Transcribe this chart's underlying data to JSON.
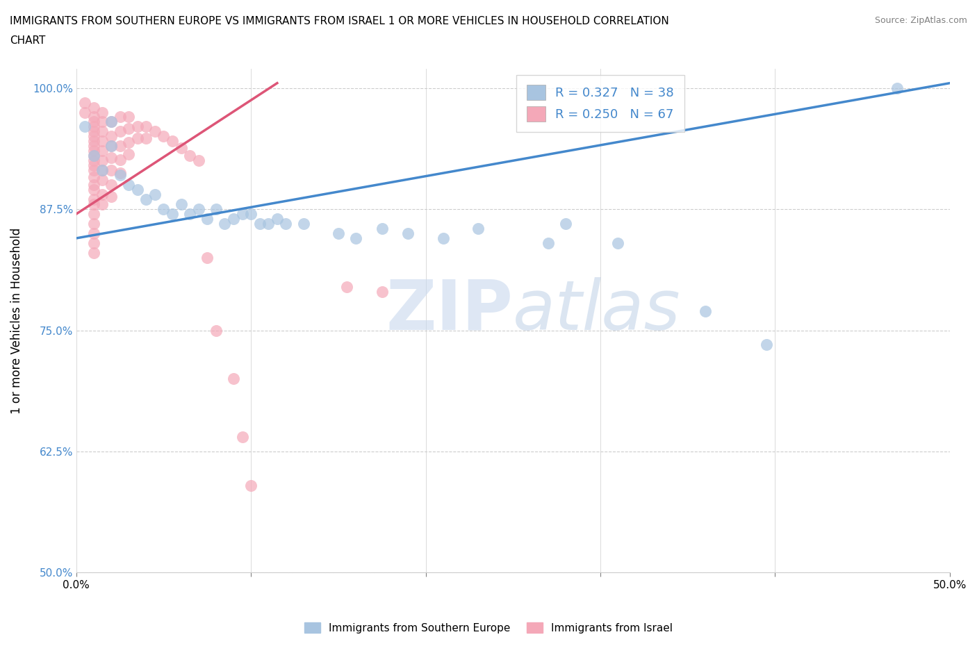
{
  "title_line1": "IMMIGRANTS FROM SOUTHERN EUROPE VS IMMIGRANTS FROM ISRAEL 1 OR MORE VEHICLES IN HOUSEHOLD CORRELATION",
  "title_line2": "CHART",
  "source": "Source: ZipAtlas.com",
  "ylabel": "1 or more Vehicles in Household",
  "xlim": [
    0.0,
    0.5
  ],
  "ylim": [
    0.5,
    1.02
  ],
  "xticks": [
    0.0,
    0.1,
    0.2,
    0.3,
    0.4,
    0.5
  ],
  "yticks": [
    0.5,
    0.625,
    0.75,
    0.875,
    1.0
  ],
  "ytick_labels": [
    "50.0%",
    "62.5%",
    "75.0%",
    "87.5%",
    "100.0%"
  ],
  "xtick_labels": [
    "0.0%",
    "",
    "",
    "",
    "",
    "50.0%"
  ],
  "blue_R": 0.327,
  "blue_N": 38,
  "pink_R": 0.25,
  "pink_N": 67,
  "blue_color": "#a8c4e0",
  "pink_color": "#f4a8b8",
  "blue_line_color": "#4488cc",
  "pink_line_color": "#dd5577",
  "watermark_color": "#d0dff0",
  "legend_text_color": "#4488cc",
  "blue_line_x": [
    0.0,
    0.5
  ],
  "blue_line_y": [
    0.845,
    1.005
  ],
  "pink_line_x": [
    0.0,
    0.115
  ],
  "pink_line_y": [
    0.87,
    1.005
  ],
  "blue_scatter": [
    [
      0.005,
      0.96
    ],
    [
      0.01,
      0.93
    ],
    [
      0.015,
      0.915
    ],
    [
      0.02,
      0.965
    ],
    [
      0.02,
      0.94
    ],
    [
      0.025,
      0.91
    ],
    [
      0.03,
      0.9
    ],
    [
      0.035,
      0.895
    ],
    [
      0.04,
      0.885
    ],
    [
      0.045,
      0.89
    ],
    [
      0.05,
      0.875
    ],
    [
      0.055,
      0.87
    ],
    [
      0.06,
      0.88
    ],
    [
      0.065,
      0.87
    ],
    [
      0.07,
      0.875
    ],
    [
      0.075,
      0.865
    ],
    [
      0.08,
      0.875
    ],
    [
      0.085,
      0.86
    ],
    [
      0.09,
      0.865
    ],
    [
      0.095,
      0.87
    ],
    [
      0.1,
      0.87
    ],
    [
      0.105,
      0.86
    ],
    [
      0.11,
      0.86
    ],
    [
      0.115,
      0.865
    ],
    [
      0.12,
      0.86
    ],
    [
      0.13,
      0.86
    ],
    [
      0.15,
      0.85
    ],
    [
      0.16,
      0.845
    ],
    [
      0.175,
      0.855
    ],
    [
      0.19,
      0.85
    ],
    [
      0.21,
      0.845
    ],
    [
      0.23,
      0.855
    ],
    [
      0.27,
      0.84
    ],
    [
      0.28,
      0.86
    ],
    [
      0.31,
      0.84
    ],
    [
      0.36,
      0.77
    ],
    [
      0.395,
      0.735
    ],
    [
      0.47,
      1.0
    ]
  ],
  "pink_scatter": [
    [
      0.005,
      0.985
    ],
    [
      0.005,
      0.975
    ],
    [
      0.01,
      0.98
    ],
    [
      0.01,
      0.97
    ],
    [
      0.01,
      0.965
    ],
    [
      0.01,
      0.96
    ],
    [
      0.01,
      0.955
    ],
    [
      0.01,
      0.95
    ],
    [
      0.01,
      0.945
    ],
    [
      0.01,
      0.94
    ],
    [
      0.01,
      0.935
    ],
    [
      0.01,
      0.93
    ],
    [
      0.01,
      0.925
    ],
    [
      0.01,
      0.92
    ],
    [
      0.01,
      0.915
    ],
    [
      0.01,
      0.908
    ],
    [
      0.01,
      0.9
    ],
    [
      0.01,
      0.895
    ],
    [
      0.01,
      0.885
    ],
    [
      0.01,
      0.88
    ],
    [
      0.01,
      0.87
    ],
    [
      0.01,
      0.86
    ],
    [
      0.01,
      0.85
    ],
    [
      0.01,
      0.84
    ],
    [
      0.01,
      0.83
    ],
    [
      0.015,
      0.975
    ],
    [
      0.015,
      0.965
    ],
    [
      0.015,
      0.955
    ],
    [
      0.015,
      0.945
    ],
    [
      0.015,
      0.935
    ],
    [
      0.015,
      0.925
    ],
    [
      0.015,
      0.915
    ],
    [
      0.015,
      0.905
    ],
    [
      0.015,
      0.89
    ],
    [
      0.015,
      0.88
    ],
    [
      0.02,
      0.965
    ],
    [
      0.02,
      0.95
    ],
    [
      0.02,
      0.94
    ],
    [
      0.02,
      0.928
    ],
    [
      0.02,
      0.915
    ],
    [
      0.02,
      0.9
    ],
    [
      0.02,
      0.888
    ],
    [
      0.025,
      0.97
    ],
    [
      0.025,
      0.955
    ],
    [
      0.025,
      0.94
    ],
    [
      0.025,
      0.926
    ],
    [
      0.025,
      0.912
    ],
    [
      0.03,
      0.97
    ],
    [
      0.03,
      0.958
    ],
    [
      0.03,
      0.944
    ],
    [
      0.03,
      0.932
    ],
    [
      0.035,
      0.96
    ],
    [
      0.035,
      0.948
    ],
    [
      0.04,
      0.96
    ],
    [
      0.04,
      0.948
    ],
    [
      0.045,
      0.955
    ],
    [
      0.05,
      0.95
    ],
    [
      0.055,
      0.945
    ],
    [
      0.06,
      0.938
    ],
    [
      0.065,
      0.93
    ],
    [
      0.07,
      0.925
    ],
    [
      0.075,
      0.825
    ],
    [
      0.08,
      0.75
    ],
    [
      0.09,
      0.7
    ],
    [
      0.095,
      0.64
    ],
    [
      0.1,
      0.59
    ],
    [
      0.155,
      0.795
    ],
    [
      0.175,
      0.79
    ]
  ]
}
